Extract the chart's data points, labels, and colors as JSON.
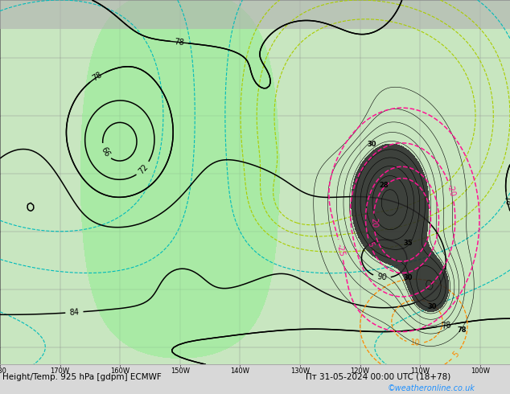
{
  "title_left": "Height/Temp. 925 hPa [gdpm] ECMWF",
  "title_right": "Пт 31-05-2024 00:00 UTC (18+78)",
  "watermark": "©weatheronline.co.uk",
  "watermark_color": "#1e90ff",
  "figsize": [
    6.34,
    4.9
  ],
  "dpi": 100,
  "bg_land": "#c8e8c0",
  "bg_gray": "#d0d0d0",
  "bottom_bar_color": "#e8e8e8",
  "tick_label_fontsize": 6,
  "title_fontsize": 7.5
}
